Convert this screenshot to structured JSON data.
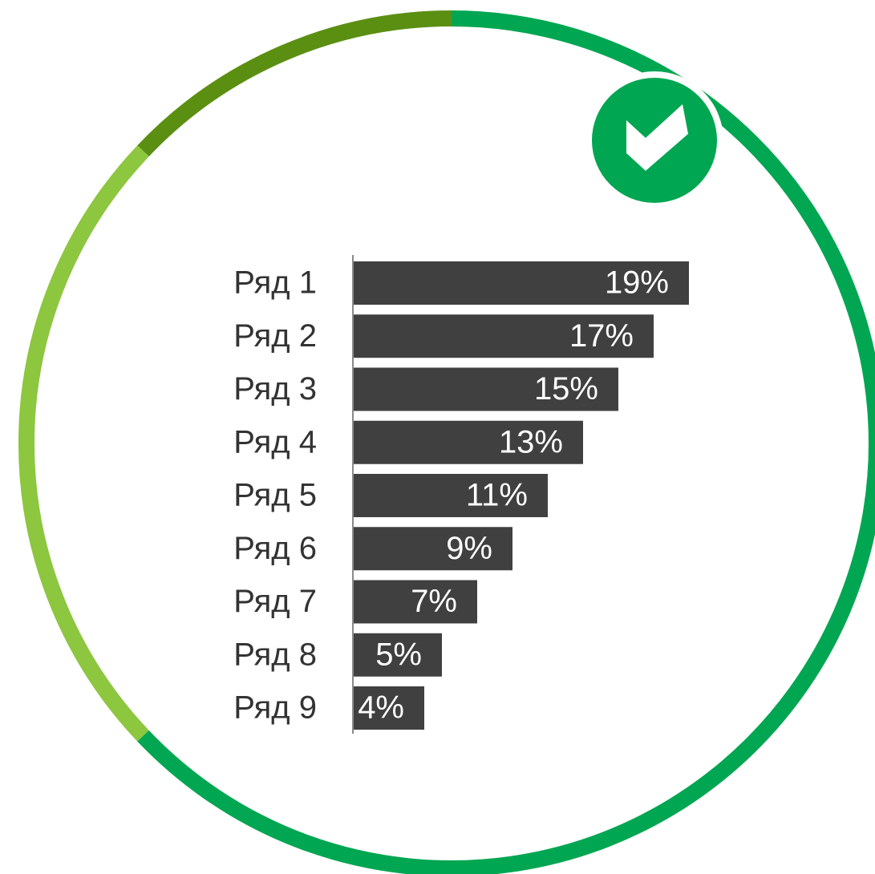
{
  "chart_data": {
    "type": "bar",
    "orientation": "horizontal",
    "categories": [
      "Ряд 1",
      "Ряд 2",
      "Ряд 3",
      "Ряд 4",
      "Ряд 5",
      "Ряд 6",
      "Ряд 7",
      "Ряд 8",
      "Ряд 9"
    ],
    "values": [
      19,
      17,
      15,
      13,
      11,
      9,
      7,
      5,
      4
    ],
    "value_labels": [
      "19%",
      "17%",
      "15%",
      "13%",
      "11%",
      "9%",
      "7%",
      "5%",
      "4%"
    ],
    "color": "#404040"
  }
}
